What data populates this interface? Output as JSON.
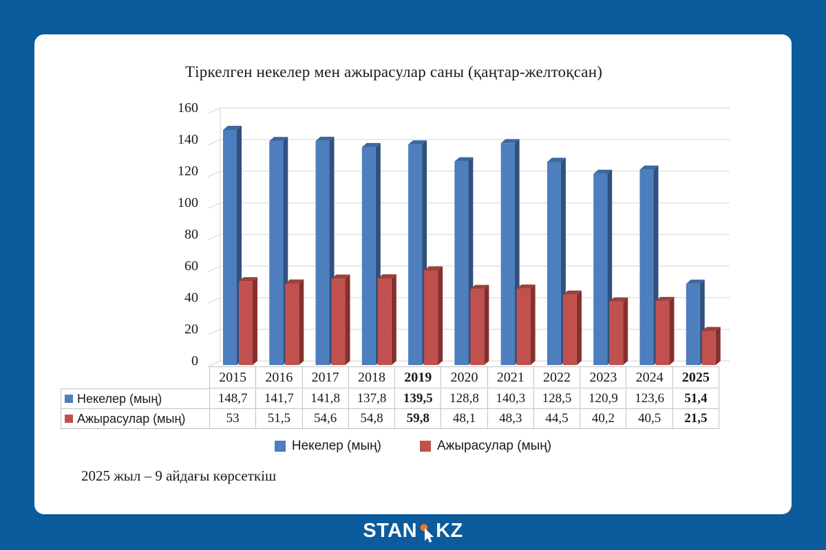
{
  "chart_data": {
    "type": "bar",
    "style": "3d-column",
    "title": "Тіркелген некелер мен ажырасулар саны (қаңтар-желтоқсан)",
    "categories": [
      "2015",
      "2016",
      "2017",
      "2018",
      "2019",
      "2020",
      "2021",
      "2022",
      "2023",
      "2024",
      "2025"
    ],
    "bold_categories": [
      "2019",
      "2025"
    ],
    "series": [
      {
        "name": "Некелер (мың)",
        "color": "#4d7ebd",
        "color_top": "#3e689e",
        "color_side": "#30507e",
        "values": [
          148.7,
          141.7,
          141.8,
          137.8,
          139.5,
          128.8,
          140.3,
          128.5,
          120.9,
          123.6,
          51.4
        ],
        "labels": [
          "148,7",
          "141,7",
          "141,8",
          "137,8",
          "139,5",
          "128,8",
          "140,3",
          "128,5",
          "120,9",
          "123,6",
          "51,4"
        ]
      },
      {
        "name": "Ажырасулар (мың)",
        "color": "#c0514e",
        "color_top": "#9e403d",
        "color_side": "#84302e",
        "values": [
          53,
          51.5,
          54.6,
          54.8,
          59.8,
          48.1,
          48.3,
          44.5,
          40.2,
          40.5,
          21.5
        ],
        "labels": [
          "53",
          "51,5",
          "54,6",
          "54,8",
          "59,8",
          "48,1",
          "48,3",
          "44,5",
          "40,2",
          "40,5",
          "21,5"
        ]
      }
    ],
    "ylim": [
      0,
      160
    ],
    "yticks": [
      0,
      20,
      40,
      60,
      80,
      100,
      120,
      140,
      160
    ],
    "grid": true,
    "legend_position": "bottom",
    "xlabel": "",
    "ylabel": ""
  },
  "footnote": "2025 жыл – 9 айдағы көрсеткіш",
  "logo": {
    "stan": "STAN",
    "kz": "KZ"
  },
  "colors": {
    "page_background": "#0b5b9d",
    "card_background": "#ffffff",
    "grid": "#dcdcdc",
    "table_border": "#c0c0c0",
    "text": "#1a1a1a",
    "logo_orange": "#ee7623",
    "logo_white": "#ffffff"
  }
}
